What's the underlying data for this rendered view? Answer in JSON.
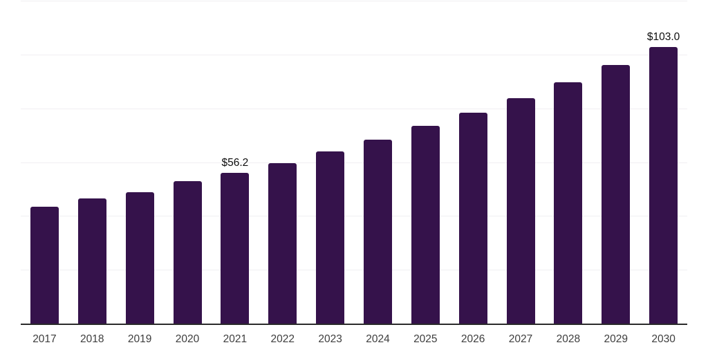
{
  "chart_data": {
    "type": "bar",
    "categories": [
      "2017",
      "2018",
      "2019",
      "2020",
      "2021",
      "2022",
      "2023",
      "2024",
      "2025",
      "2026",
      "2027",
      "2028",
      "2029",
      "2030"
    ],
    "values": [
      43.8,
      46.7,
      49.2,
      53.3,
      56.2,
      60.0,
      64.2,
      68.7,
      73.8,
      78.7,
      84.1,
      89.9,
      96.3,
      103.0
    ],
    "data_labels": {
      "2021": "$56.2",
      "2030": "$103.0"
    },
    "ylim": [
      0,
      120
    ],
    "gridline_values": [
      20,
      40,
      60,
      80,
      100,
      120
    ],
    "grid": true,
    "legend": false,
    "colors": {
      "bar": "#35124b",
      "gridline": "#f0eff2",
      "axis": "#2a2a2a",
      "tick_label": "#3d3d3d",
      "data_label": "#0e0e0e",
      "background": "#ffffff"
    }
  }
}
